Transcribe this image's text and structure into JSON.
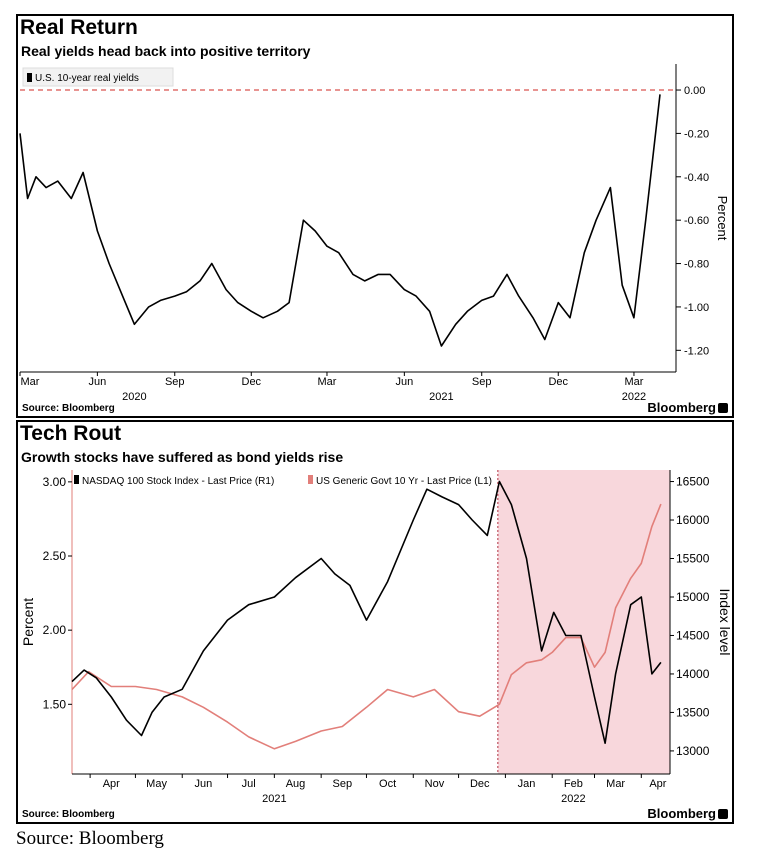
{
  "source_caption": "Source: Bloomberg",
  "chart_data": [
    {
      "type": "line",
      "title": "Real Return",
      "subtitle": "Real yields head back into positive territory",
      "legend": [
        "U.S. 10-year real yields"
      ],
      "ylabel": "Percent",
      "y_axis_side": "right",
      "y_ticks": [
        "0.00",
        "-0.20",
        "-0.40",
        "-0.60",
        "-0.80",
        "-1.00",
        "-1.20"
      ],
      "ylim": [
        -1.3,
        0.12
      ],
      "x_month_labels": [
        "Mar",
        "Jun",
        "Sep",
        "Dec",
        "Mar",
        "Jun",
        "Sep",
        "Dec",
        "Mar"
      ],
      "x_year_labels": [
        "2020",
        "2021",
        "2022"
      ],
      "reference_line": {
        "value": 0,
        "color": "#d9534f",
        "style": "dashed"
      },
      "source": "Source: Bloomberg",
      "brand": "Bloomberg",
      "series": [
        {
          "name": "U.S. 10-year real yields",
          "color": "#000000",
          "x": [
            "2020-03-01",
            "2020-03-10",
            "2020-03-20",
            "2020-04-01",
            "2020-04-15",
            "2020-05-01",
            "2020-05-15",
            "2020-06-01",
            "2020-06-15",
            "2020-07-01",
            "2020-07-15",
            "2020-08-01",
            "2020-08-15",
            "2020-09-01",
            "2020-09-15",
            "2020-10-01",
            "2020-10-15",
            "2020-11-01",
            "2020-11-15",
            "2020-12-01",
            "2020-12-15",
            "2021-01-01",
            "2021-01-15",
            "2021-02-01",
            "2021-02-15",
            "2021-03-01",
            "2021-03-15",
            "2021-04-01",
            "2021-04-15",
            "2021-05-01",
            "2021-05-15",
            "2021-06-01",
            "2021-06-15",
            "2021-07-01",
            "2021-07-15",
            "2021-08-01",
            "2021-08-15",
            "2021-09-01",
            "2021-09-15",
            "2021-10-01",
            "2021-10-15",
            "2021-11-01",
            "2021-11-15",
            "2021-12-01",
            "2021-12-15",
            "2022-01-01",
            "2022-01-15",
            "2022-02-01",
            "2022-02-15",
            "2022-03-01",
            "2022-03-15",
            "2022-04-01"
          ],
          "values": [
            -0.2,
            -0.5,
            -0.4,
            -0.45,
            -0.42,
            -0.5,
            -0.38,
            -0.65,
            -0.8,
            -0.95,
            -1.08,
            -1.0,
            -0.97,
            -0.95,
            -0.93,
            -0.88,
            -0.8,
            -0.92,
            -0.98,
            -1.02,
            -1.05,
            -1.02,
            -0.98,
            -0.6,
            -0.65,
            -0.72,
            -0.75,
            -0.85,
            -0.88,
            -0.85,
            -0.85,
            -0.92,
            -0.95,
            -1.02,
            -1.18,
            -1.08,
            -1.02,
            -0.97,
            -0.95,
            -0.85,
            -0.95,
            -1.05,
            -1.15,
            -0.98,
            -1.05,
            -0.75,
            -0.6,
            -0.45,
            -0.9,
            -1.05,
            -0.6,
            -0.02
          ]
        }
      ]
    },
    {
      "type": "line",
      "title": "Tech Rout",
      "subtitle": "Growth stocks have suffered as bond yields rise",
      "legend": [
        "NASDAQ 100 Stock Index - Last Price (R1)",
        "US Generic Govt 10 Yr - Last Price (L1)"
      ],
      "ylabel_left": "Percent",
      "ylabel_right": "Index level",
      "y_left_ticks": [
        "3.00",
        "2.50",
        "2.00",
        "1.50"
      ],
      "y_left_lim": [
        1.03,
        3.08
      ],
      "y_right_ticks": [
        "16500",
        "16000",
        "15500",
        "15000",
        "14500",
        "14000",
        "13500",
        "13000"
      ],
      "y_right_lim": [
        12700,
        16650
      ],
      "x_month_labels": [
        "Apr",
        "May",
        "Jun",
        "Jul",
        "Aug",
        "Sep",
        "Oct",
        "Nov",
        "Dec",
        "Jan",
        "Feb",
        "Mar",
        "Apr"
      ],
      "x_year_labels": [
        "2021",
        "2022"
      ],
      "shaded_region": {
        "start": "2021-12-27",
        "end": "2022-04-20",
        "color": "#f8d7dc"
      },
      "source": "Source: Bloomberg",
      "brand": "Bloomberg",
      "series": [
        {
          "name": "NASDAQ 100 Stock Index - Last Price (R1)",
          "axis": "right",
          "color": "#000000",
          "x": [
            "2021-03-20",
            "2021-03-28",
            "2021-04-05",
            "2021-04-15",
            "2021-04-25",
            "2021-05-05",
            "2021-05-12",
            "2021-05-20",
            "2021-06-01",
            "2021-06-15",
            "2021-07-01",
            "2021-07-15",
            "2021-08-01",
            "2021-08-15",
            "2021-09-01",
            "2021-09-10",
            "2021-09-20",
            "2021-10-01",
            "2021-10-15",
            "2021-11-01",
            "2021-11-10",
            "2021-11-20",
            "2021-12-01",
            "2021-12-10",
            "2021-12-20",
            "2021-12-28",
            "2022-01-05",
            "2022-01-15",
            "2022-01-25",
            "2022-02-02",
            "2022-02-10",
            "2022-02-20",
            "2022-03-01",
            "2022-03-08",
            "2022-03-15",
            "2022-03-25",
            "2022-04-01",
            "2022-04-08",
            "2022-04-14"
          ],
          "values": [
            13900,
            14050,
            13950,
            13700,
            13400,
            13200,
            13500,
            13700,
            13800,
            14300,
            14700,
            14900,
            15000,
            15250,
            15500,
            15300,
            15150,
            14700,
            15200,
            16000,
            16400,
            16300,
            16200,
            16000,
            15800,
            16500,
            16200,
            15500,
            14300,
            14800,
            14500,
            14500,
            13700,
            13100,
            14000,
            14900,
            15000,
            14000,
            14150
          ]
        },
        {
          "name": "US Generic Govt 10 Yr - Last Price (L1)",
          "axis": "left",
          "color": "#e27f7a",
          "x": [
            "2021-03-20",
            "2021-03-31",
            "2021-04-15",
            "2021-05-01",
            "2021-05-15",
            "2021-06-01",
            "2021-06-15",
            "2021-07-01",
            "2021-07-15",
            "2021-08-01",
            "2021-08-15",
            "2021-09-01",
            "2021-09-15",
            "2021-10-01",
            "2021-10-15",
            "2021-11-01",
            "2021-11-15",
            "2021-12-01",
            "2021-12-15",
            "2021-12-28",
            "2022-01-05",
            "2022-01-15",
            "2022-01-25",
            "2022-02-01",
            "2022-02-10",
            "2022-02-20",
            "2022-03-01",
            "2022-03-08",
            "2022-03-15",
            "2022-03-25",
            "2022-04-01",
            "2022-04-08",
            "2022-04-14"
          ],
          "values": [
            1.6,
            1.72,
            1.62,
            1.62,
            1.6,
            1.55,
            1.48,
            1.38,
            1.28,
            1.2,
            1.25,
            1.32,
            1.35,
            1.48,
            1.6,
            1.55,
            1.6,
            1.45,
            1.42,
            1.5,
            1.7,
            1.78,
            1.8,
            1.85,
            1.95,
            1.95,
            1.75,
            1.85,
            2.15,
            2.35,
            2.45,
            2.7,
            2.85
          ]
        }
      ]
    }
  ]
}
